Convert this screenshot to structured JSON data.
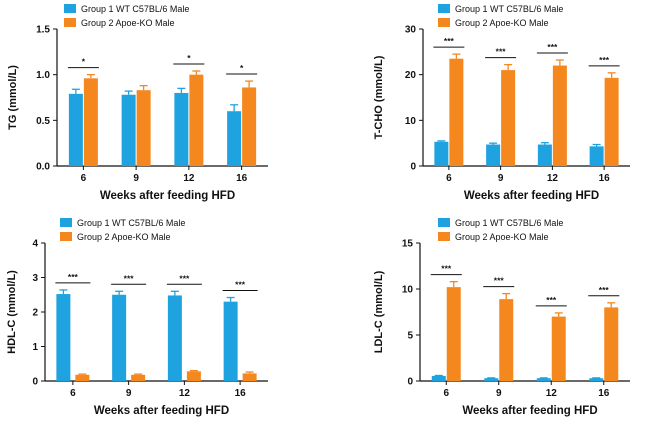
{
  "colors": {
    "group1": "#1ea3e0",
    "group2": "#f5871f",
    "axis": "#111111"
  },
  "chart_data": [
    {
      "type": "bar",
      "legend_position": "top",
      "ylabel": "TG (mmol/L)",
      "xlabel": "Weeks after feeding HFD",
      "categories": [
        "6",
        "9",
        "12",
        "16"
      ],
      "ylim": [
        0,
        1.5
      ],
      "yticks": [
        "0.0",
        "0.5",
        "1.0",
        "1.5"
      ],
      "series": [
        {
          "name": "Group 1 WT C57BL/6 Male",
          "values": [
            0.79,
            0.78,
            0.8,
            0.6
          ],
          "errors": [
            0.05,
            0.04,
            0.05,
            0.07
          ]
        },
        {
          "name": "Group 2 Apoe-KO Male",
          "values": [
            0.96,
            0.83,
            1.0,
            0.86
          ],
          "errors": [
            0.04,
            0.05,
            0.04,
            0.07
          ]
        }
      ],
      "significance": [
        "*",
        "",
        "*",
        "*"
      ]
    },
    {
      "type": "bar",
      "legend_position": "top",
      "ylabel": "T-CHO (mmol/L)",
      "xlabel": "Weeks after feeding HFD",
      "categories": [
        "6",
        "9",
        "12",
        "16"
      ],
      "ylim": [
        0,
        30
      ],
      "yticks": [
        "0",
        "10",
        "20",
        "30"
      ],
      "series": [
        {
          "name": "Group 1 WT C57BL/6 Male",
          "values": [
            5.3,
            4.7,
            4.7,
            4.3
          ],
          "errors": [
            0.2,
            0.3,
            0.4,
            0.4
          ]
        },
        {
          "name": "Group 2 Apoe-KO Male",
          "values": [
            23.5,
            21.0,
            22.0,
            19.3
          ],
          "errors": [
            1.0,
            1.2,
            1.2,
            1.1
          ]
        }
      ],
      "significance": [
        "***",
        "***",
        "***",
        "***"
      ]
    },
    {
      "type": "bar",
      "legend_position": "top",
      "ylabel": "HDL-C (mmol/L)",
      "xlabel": "Weeks after feeding HFD",
      "categories": [
        "6",
        "9",
        "12",
        "16"
      ],
      "ylim": [
        0,
        4
      ],
      "yticks": [
        "0",
        "1",
        "2",
        "3",
        "4"
      ],
      "series": [
        {
          "name": "Group 1 WT C57BL/6 Male",
          "values": [
            2.52,
            2.5,
            2.48,
            2.3
          ],
          "errors": [
            0.12,
            0.1,
            0.12,
            0.12
          ]
        },
        {
          "name": "Group 2 Apoe-KO Male",
          "values": [
            0.18,
            0.18,
            0.28,
            0.22
          ],
          "errors": [
            0.02,
            0.02,
            0.02,
            0.04
          ]
        }
      ],
      "significance": [
        "***",
        "***",
        "***",
        "***"
      ]
    },
    {
      "type": "bar",
      "legend_position": "top",
      "ylabel": "LDL-C (mmol/L)",
      "xlabel": "Weeks after feeding HFD",
      "categories": [
        "6",
        "9",
        "12",
        "16"
      ],
      "ylim": [
        0,
        15
      ],
      "yticks": [
        "0",
        "5",
        "10",
        "15"
      ],
      "series": [
        {
          "name": "Group 1 WT C57BL/6 Male",
          "values": [
            0.55,
            0.3,
            0.3,
            0.3
          ],
          "errors": [
            0.05,
            0.04,
            0.04,
            0.04
          ]
        },
        {
          "name": "Group 2 Apoe-KO Male",
          "values": [
            10.2,
            8.9,
            7.0,
            8.0
          ],
          "errors": [
            0.6,
            0.6,
            0.4,
            0.5
          ]
        }
      ],
      "significance": [
        "***",
        "***",
        "***",
        "***"
      ]
    }
  ]
}
